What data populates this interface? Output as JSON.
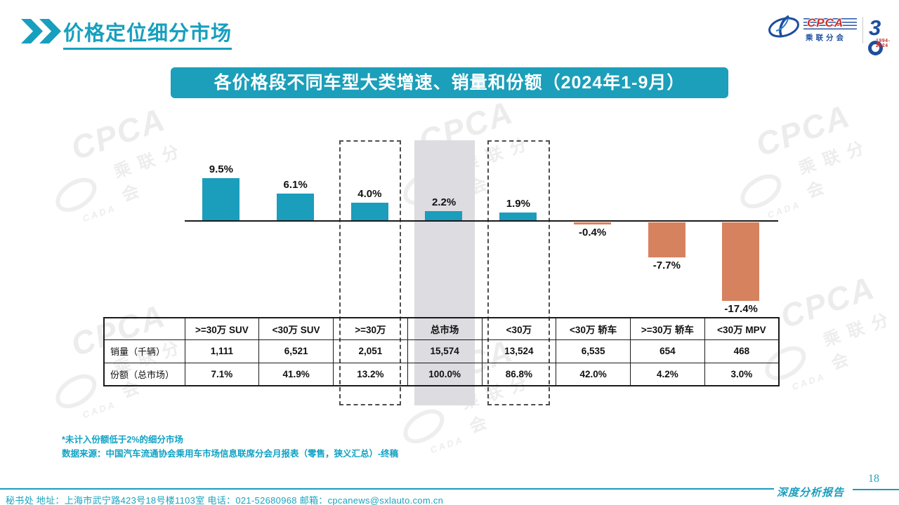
{
  "header": {
    "title": "价格定位细分市场"
  },
  "logo": {
    "cpca": "CPCA",
    "subtitle": "乘联分会",
    "cada": "CADA",
    "anniversary_digit": "3",
    "anniversary_years": "1994-2024"
  },
  "banner": {
    "title": "各价格段不同车型大类增速、销量和份额（2024年1-9月）"
  },
  "chart_data": {
    "type": "bar",
    "title": "各价格段不同车型大类增速、销量和份额（2024年1-9月）",
    "categories": [
      ">=30万 SUV",
      "<30万 SUV",
      ">=30万",
      "总市场",
      "<30万",
      "<30万 轿车",
      ">=30万 轿车",
      "<30万 MPV"
    ],
    "values": [
      9.5,
      6.1,
      4.0,
      2.2,
      1.9,
      -0.4,
      -7.7,
      -17.4
    ],
    "labels": [
      "9.5%",
      "6.1%",
      "4.0%",
      "2.2%",
      "1.9%",
      "-0.4%",
      "-7.7%",
      "-17.4%"
    ],
    "ylim": [
      -18,
      10
    ],
    "grid": false,
    "legend": "none",
    "bar_color_positive": "#1b9dbc",
    "bar_color_negative": "#d6825f",
    "highlight_dashed_indexes": [
      2,
      4
    ],
    "highlight_filled_indexes": [
      3
    ],
    "highlight_fill_color": "#dcdce1"
  },
  "table": {
    "col_headers": [
      ">=30万 SUV",
      "<30万 SUV",
      ">=30万",
      "总市场",
      "<30万",
      "<30万 轿车",
      ">=30万 轿车",
      "<30万 MPV"
    ],
    "row_headers": [
      "销量（千辆）",
      "份额（总市场）"
    ],
    "rows": [
      [
        "1,111",
        "6,521",
        "2,051",
        "15,574",
        "13,524",
        "6,535",
        "654",
        "468"
      ],
      [
        "7.1%",
        "41.9%",
        "13.2%",
        "100.0%",
        "86.8%",
        "42.0%",
        "4.2%",
        "3.0%"
      ]
    ]
  },
  "notes": {
    "line1": "*未计入份额低于2%的细分市场",
    "line2": "数据来源：中国汽车流通协会乘用车市场信息联席分会月报表（零售，狭义汇总）-终稿"
  },
  "footer": {
    "contact": "秘书处  地址：上海市武宁路423号18号楼1103室 电话：021-52680968   邮箱：cpcanews@sxlauto.com.cn",
    "page_number": "18",
    "report_label": "深度分析报告"
  },
  "watermark": {
    "line1": "CPCA",
    "line2": "乘联分会",
    "line3": "CADA"
  },
  "colors": {
    "accent_teal": "#1b9fba",
    "accent_orange": "#d6825f",
    "highlight_gray": "#dcdce1",
    "logo_blue": "#1d4e9e",
    "logo_red": "#c8322b"
  }
}
